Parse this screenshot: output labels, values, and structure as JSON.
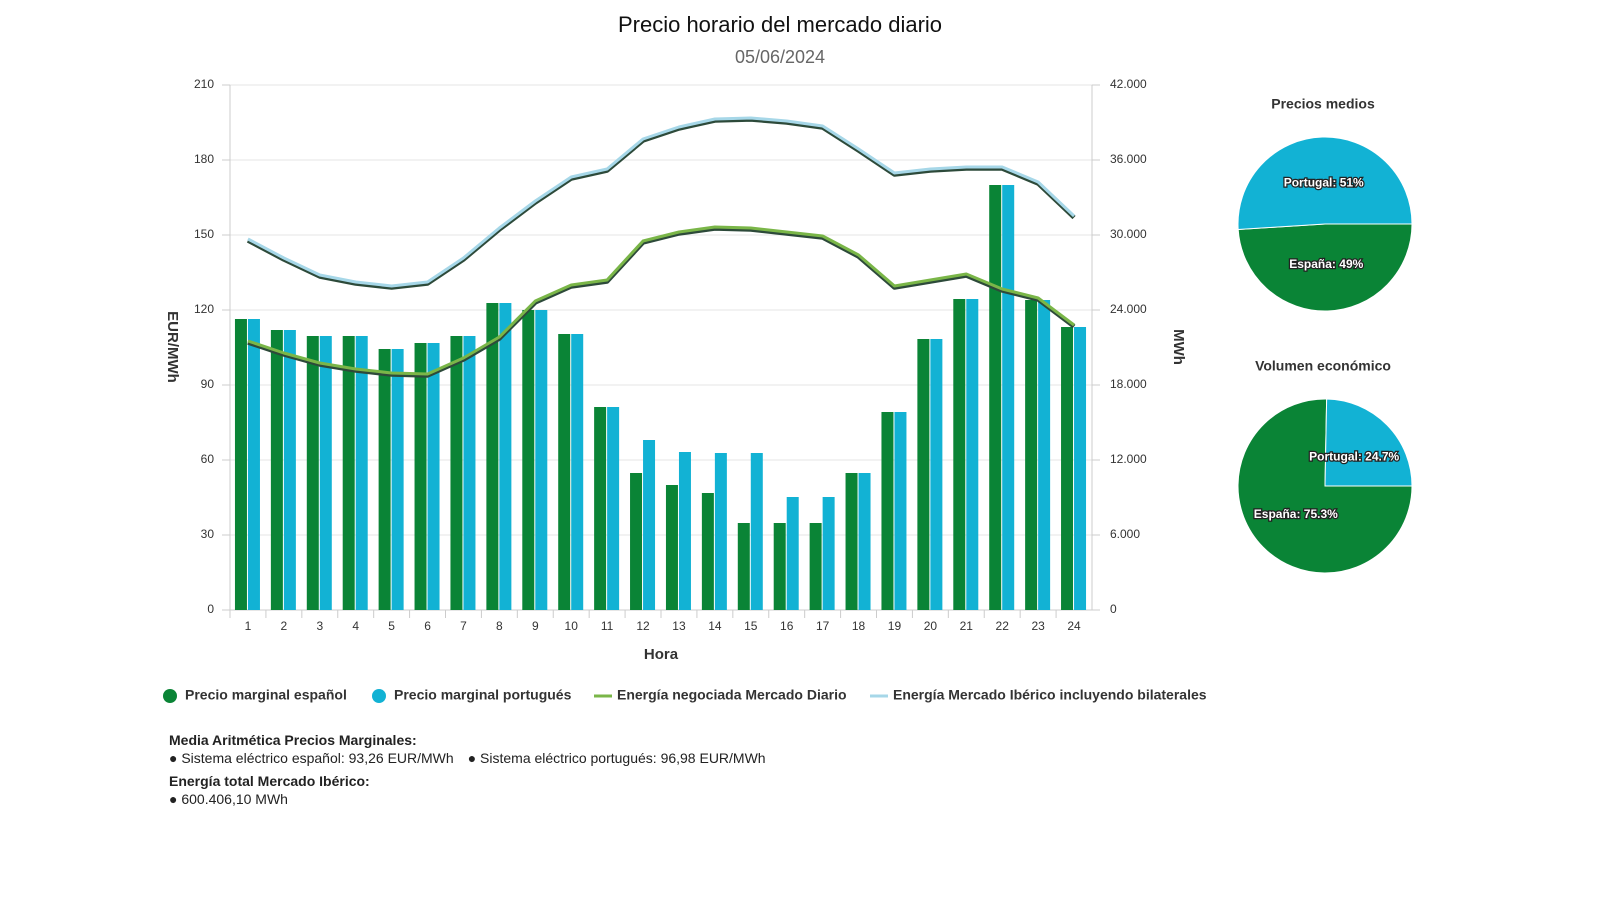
{
  "chart_data": [
    {
      "type": "bar",
      "title": "Precio horario del mercado diario",
      "subtitle": "05/06/2024",
      "x_label": "Hora",
      "y_label": "EUR/MWh",
      "y2_label": "MWh",
      "categories": [
        "1",
        "2",
        "3",
        "4",
        "5",
        "6",
        "7",
        "8",
        "9",
        "10",
        "11",
        "12",
        "13",
        "14",
        "15",
        "16",
        "17",
        "18",
        "19",
        "20",
        "21",
        "22",
        "23",
        "24"
      ],
      "series": [
        {
          "name": "Precio marginal español",
          "type": "bar",
          "color": "#0a8436",
          "values": [
            116.4,
            112,
            109.6,
            109.6,
            104.4,
            106.8,
            109.6,
            122.8,
            120,
            110.4,
            81.2,
            54.8,
            50,
            46.8,
            34.8,
            34.8,
            34.8,
            54.8,
            79.2,
            108.4,
            124.4,
            170,
            124,
            113.2
          ]
        },
        {
          "name": "Precio marginal portugués",
          "type": "bar",
          "color": "#12b2d4",
          "values": [
            116.4,
            112,
            109.6,
            109.6,
            104.4,
            106.8,
            109.6,
            122.8,
            120,
            110.4,
            81.2,
            68,
            63.2,
            62.8,
            62.8,
            45.2,
            45.2,
            54.8,
            79.2,
            108.4,
            124.4,
            170,
            124,
            113.2
          ]
        },
        {
          "name": "Energía negociada Mercado Diario",
          "type": "line",
          "axis": "y2",
          "color": "#7ab648",
          "values": [
            21520,
            20560,
            19760,
            19280,
            18960,
            18880,
            20160,
            21840,
            24720,
            26000,
            26400,
            29520,
            30240,
            30640,
            30560,
            30240,
            29920,
            28400,
            25920,
            26400,
            26880,
            25680,
            24960,
            22800
          ]
        },
        {
          "name": "Energía Mercado Ibérico incluyendo bilaterales",
          "type": "line",
          "axis": "y2",
          "color": "#a6d7e8",
          "values": [
            29680,
            28160,
            26800,
            26240,
            25920,
            26240,
            28160,
            30560,
            32720,
            34640,
            35280,
            37680,
            38640,
            39280,
            39360,
            39120,
            38720,
            36880,
            34960,
            35280,
            35440,
            35440,
            34240,
            31520
          ]
        }
      ],
      "ylim": [
        0,
        210
      ],
      "yticks": [
        0,
        30,
        60,
        90,
        120,
        150,
        180,
        210
      ],
      "y2lim": [
        0,
        42000
      ],
      "y2ticks": [
        {
          "value": 0,
          "label": "0"
        },
        {
          "value": 6000,
          "label": "6.000"
        },
        {
          "value": 12000,
          "label": "12.000"
        },
        {
          "value": 18000,
          "label": "18.000"
        },
        {
          "value": 24000,
          "label": "24.000"
        },
        {
          "value": 30000,
          "label": "30.000"
        },
        {
          "value": 36000,
          "label": "36.000"
        },
        {
          "value": 42000,
          "label": "42.000"
        }
      ],
      "grid": true,
      "legend": "bottom"
    },
    {
      "type": "pie",
      "title": "Precios medios",
      "categories": [
        "España",
        "Portugal"
      ],
      "values": [
        49,
        51
      ],
      "value_labels": [
        "España: 49%",
        "Portugal: 51%"
      ],
      "colors": [
        "#0a8436",
        "#12b2d4"
      ]
    },
    {
      "type": "pie",
      "title": "Volumen económico",
      "categories": [
        "España",
        "Portugal"
      ],
      "values": [
        75.3,
        24.7
      ],
      "value_labels": [
        "España: 75.3%",
        "Portugal: 24.7%"
      ],
      "colors": [
        "#0a8436",
        "#12b2d4"
      ]
    }
  ],
  "summary": {
    "sections": [
      {
        "heading": "Media Aritmética Precios Marginales:",
        "items": [
          "● Sistema eléctrico español: 93,26 EUR/MWh",
          "● Sistema eléctrico portugués: 96,98 EUR/MWh"
        ]
      },
      {
        "heading": "Energía total Mercado Ibérico:",
        "items": [
          "● 600.406,10 MWh"
        ]
      }
    ]
  }
}
